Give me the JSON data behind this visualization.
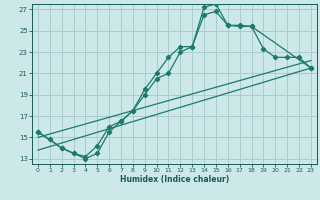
{
  "xlabel": "Humidex (Indice chaleur)",
  "bg_color": "#cce8e8",
  "grid_color": "#aacccc",
  "line_color": "#1a7a6e",
  "tick_color": "#1a5a5a",
  "xlim": [
    -0.5,
    23.5
  ],
  "ylim": [
    12.5,
    27.5
  ],
  "xticks": [
    0,
    1,
    2,
    3,
    4,
    5,
    6,
    7,
    8,
    9,
    10,
    11,
    12,
    13,
    14,
    15,
    16,
    17,
    18,
    19,
    20,
    21,
    22,
    23
  ],
  "yticks": [
    13,
    15,
    17,
    19,
    21,
    23,
    25,
    27
  ],
  "line1_x": [
    0,
    1,
    2,
    3,
    4,
    5,
    6,
    7,
    8,
    9,
    10,
    11,
    12,
    13,
    14,
    15,
    16,
    17,
    18,
    19,
    20,
    21,
    22,
    23
  ],
  "line1_y": [
    15.5,
    14.8,
    14.0,
    13.5,
    13.0,
    13.5,
    15.5,
    16.5,
    17.5,
    19.5,
    21.0,
    22.5,
    23.5,
    23.5,
    27.2,
    27.5,
    25.5,
    25.5,
    25.4,
    23.3,
    22.5,
    22.5,
    22.5,
    21.5
  ],
  "line2_x": [
    0,
    2,
    3,
    4,
    5,
    6,
    7,
    8,
    9,
    10,
    11,
    12,
    13,
    14,
    15,
    16,
    17,
    18,
    23
  ],
  "line2_y": [
    15.5,
    14.0,
    13.5,
    13.2,
    14.2,
    16.0,
    16.5,
    17.5,
    19.0,
    20.5,
    21.0,
    23.0,
    23.5,
    26.5,
    26.8,
    25.5,
    25.4,
    25.4,
    21.5
  ],
  "line3_x": [
    0,
    23
  ],
  "line3_y": [
    15.0,
    22.2
  ],
  "line4_x": [
    0,
    23
  ],
  "line4_y": [
    13.8,
    21.5
  ]
}
